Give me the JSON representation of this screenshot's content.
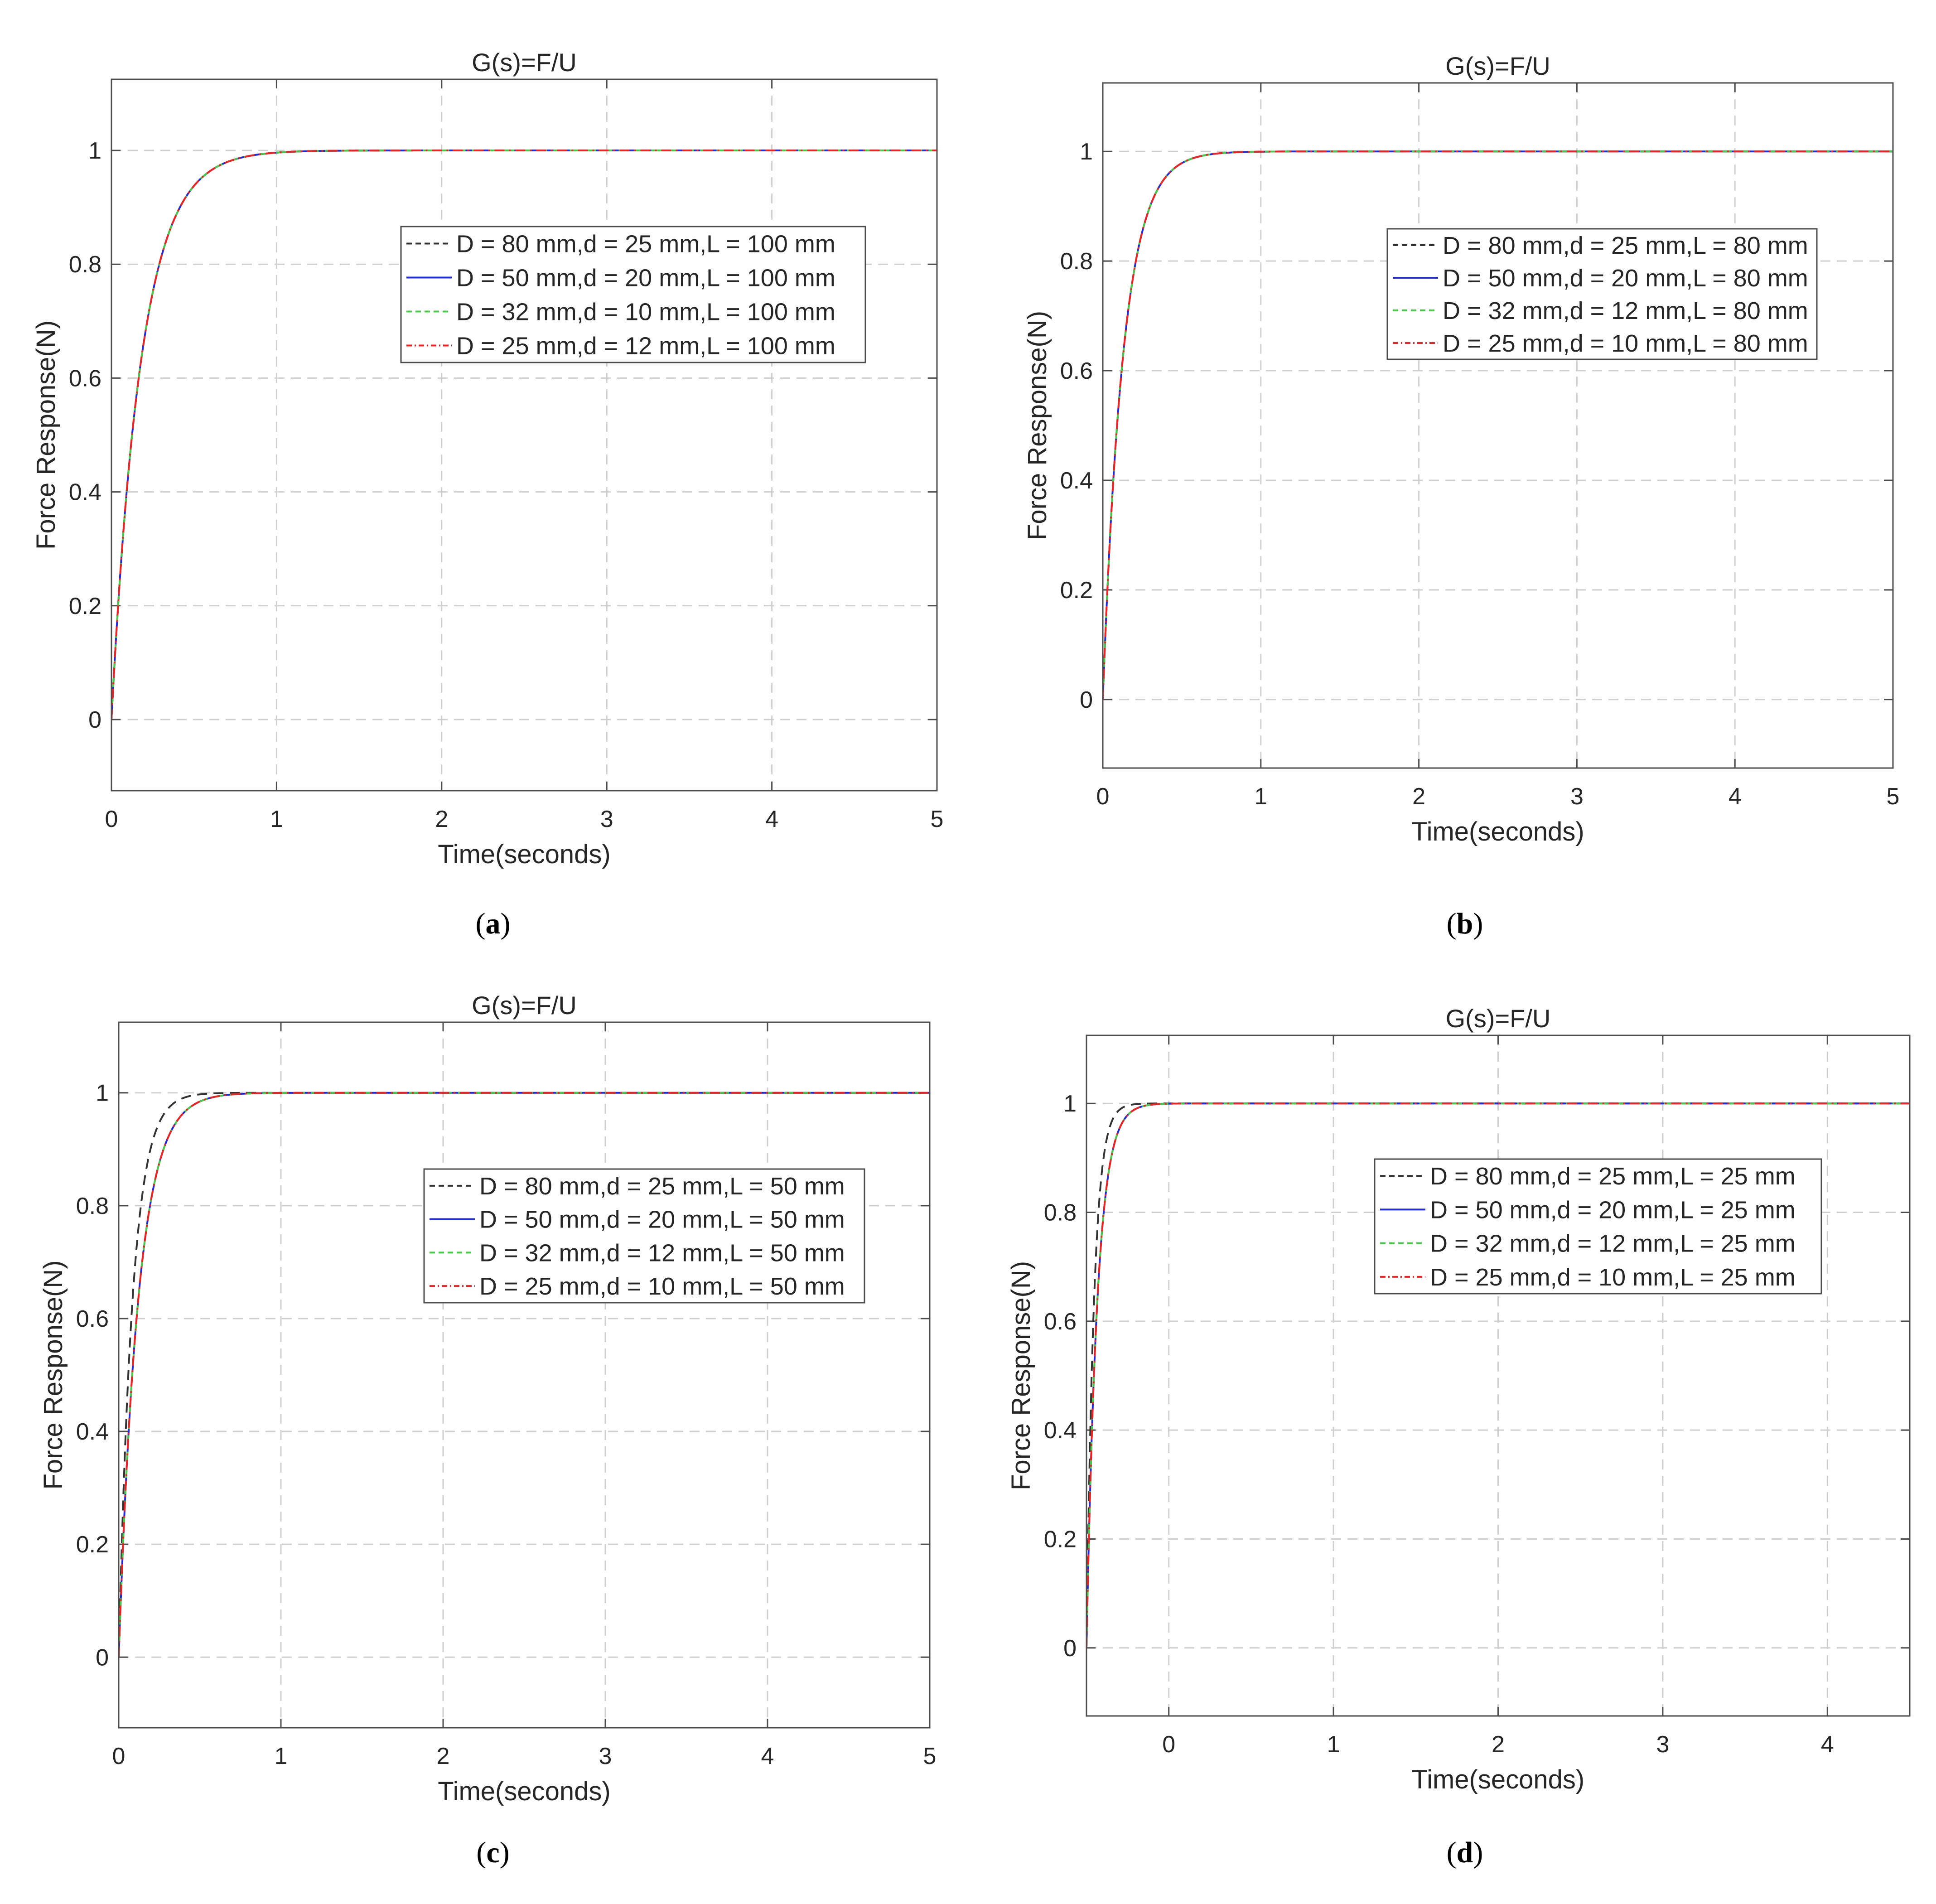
{
  "chart_data": [
    {
      "panel": "a",
      "type": "line",
      "title": "G(s)=F/U",
      "xlabel": "Time(seconds)",
      "ylabel": "Force Response(N)",
      "xlim": [
        0,
        5
      ],
      "ylim": [
        -0.125,
        1.125
      ],
      "xticks": [
        0,
        1,
        2,
        3,
        4,
        5
      ],
      "yticks": [
        0,
        0.2,
        0.4,
        0.6,
        0.8,
        1
      ],
      "grid": true,
      "legend_position": "upper-right-center",
      "caption": "(a)",
      "series": [
        {
          "name": "D = 80 mm,d = 25 mm,L = 100 mm",
          "color": "#333333",
          "style": "dashed",
          "tau": 0.18,
          "t0": 0
        },
        {
          "name": "D = 50 mm,d = 20 mm,L = 100 mm",
          "color": "#1f2be0",
          "style": "solid",
          "tau": 0.18,
          "t0": 0
        },
        {
          "name": "D = 32 mm,d = 10 mm,L = 100 mm",
          "color": "#44cc44",
          "style": "dashed",
          "tau": 0.18,
          "t0": 0
        },
        {
          "name": "D = 25 mm,d = 12 mm,L = 100 mm",
          "color": "#ee2222",
          "style": "dashdot",
          "tau": 0.18,
          "t0": 0
        }
      ]
    },
    {
      "panel": "b",
      "type": "line",
      "title": "G(s)=F/U",
      "xlabel": "Time(seconds)",
      "ylabel": "Force Response(N)",
      "xlim": [
        0,
        5
      ],
      "ylim": [
        -0.125,
        1.125
      ],
      "xticks": [
        0,
        1,
        2,
        3,
        4,
        5
      ],
      "yticks": [
        0,
        0.2,
        0.4,
        0.6,
        0.8,
        1
      ],
      "grid": true,
      "legend_position": "upper-right",
      "caption": "(b)",
      "series": [
        {
          "name": "D = 80 mm,d = 25 mm,L = 80 mm",
          "color": "#333333",
          "style": "dashed",
          "tau": 0.13,
          "t0": 0
        },
        {
          "name": "D = 50 mm,d = 20 mm,L = 80 mm",
          "color": "#1f2be0",
          "style": "solid",
          "tau": 0.13,
          "t0": 0
        },
        {
          "name": "D = 32 mm,d = 12 mm,L = 80 mm",
          "color": "#44cc44",
          "style": "dashed",
          "tau": 0.13,
          "t0": 0
        },
        {
          "name": "D = 25 mm,d = 10 mm,L = 80 mm",
          "color": "#ee2222",
          "style": "dashdot",
          "tau": 0.13,
          "t0": 0
        }
      ]
    },
    {
      "panel": "c",
      "type": "line",
      "title": "G(s)=F/U",
      "xlabel": "Time(seconds)",
      "ylabel": "Force Response(N)",
      "xlim": [
        0,
        5
      ],
      "ylim": [
        -0.125,
        1.125
      ],
      "xticks": [
        0,
        1,
        2,
        3,
        4,
        5
      ],
      "yticks": [
        0,
        0.2,
        0.4,
        0.6,
        0.8,
        1
      ],
      "grid": true,
      "legend_position": "upper-right",
      "caption": "(c)",
      "series": [
        {
          "name": "D = 80 mm,d = 25 mm,L = 50 mm",
          "color": "#333333",
          "style": "dashed",
          "tau": 0.085,
          "t0": 0
        },
        {
          "name": "D = 50 mm,d = 20 mm,L = 50 mm",
          "color": "#1f2be0",
          "style": "solid",
          "tau": 0.12,
          "t0": 0
        },
        {
          "name": "D = 32 mm,d = 12 mm,L = 50 mm",
          "color": "#44cc44",
          "style": "dashed",
          "tau": 0.12,
          "t0": 0
        },
        {
          "name": "D = 25 mm,d = 10 mm,L = 50 mm",
          "color": "#ee2222",
          "style": "dashdot",
          "tau": 0.12,
          "t0": 0
        }
      ]
    },
    {
      "panel": "d",
      "type": "line",
      "title": "G(s)=F/U",
      "xlabel": "Time(seconds)",
      "ylabel": "Force Response(N)",
      "xlim": [
        -0.5,
        4.5
      ],
      "ylim": [
        -0.125,
        1.125
      ],
      "xticks": [
        0,
        1,
        2,
        3,
        4
      ],
      "yticks": [
        0,
        0.2,
        0.4,
        0.6,
        0.8,
        1
      ],
      "grid": true,
      "legend_position": "upper-right",
      "caption": "(d)",
      "series": [
        {
          "name": "D = 80 mm,d = 25 mm,L = 25 mm",
          "color": "#333333",
          "style": "dashed",
          "tau": 0.045,
          "t0": -0.5
        },
        {
          "name": "D = 50 mm,d = 20 mm,L = 25 mm",
          "color": "#1f2be0",
          "style": "solid",
          "tau": 0.065,
          "t0": -0.5
        },
        {
          "name": "D = 32 mm,d = 12 mm,L = 25 mm",
          "color": "#44cc44",
          "style": "dashed",
          "tau": 0.065,
          "t0": -0.5
        },
        {
          "name": "D = 25 mm,d = 10 mm,L = 25 mm",
          "color": "#ee2222",
          "style": "dashdot",
          "tau": 0.065,
          "t0": -0.5
        }
      ]
    }
  ]
}
